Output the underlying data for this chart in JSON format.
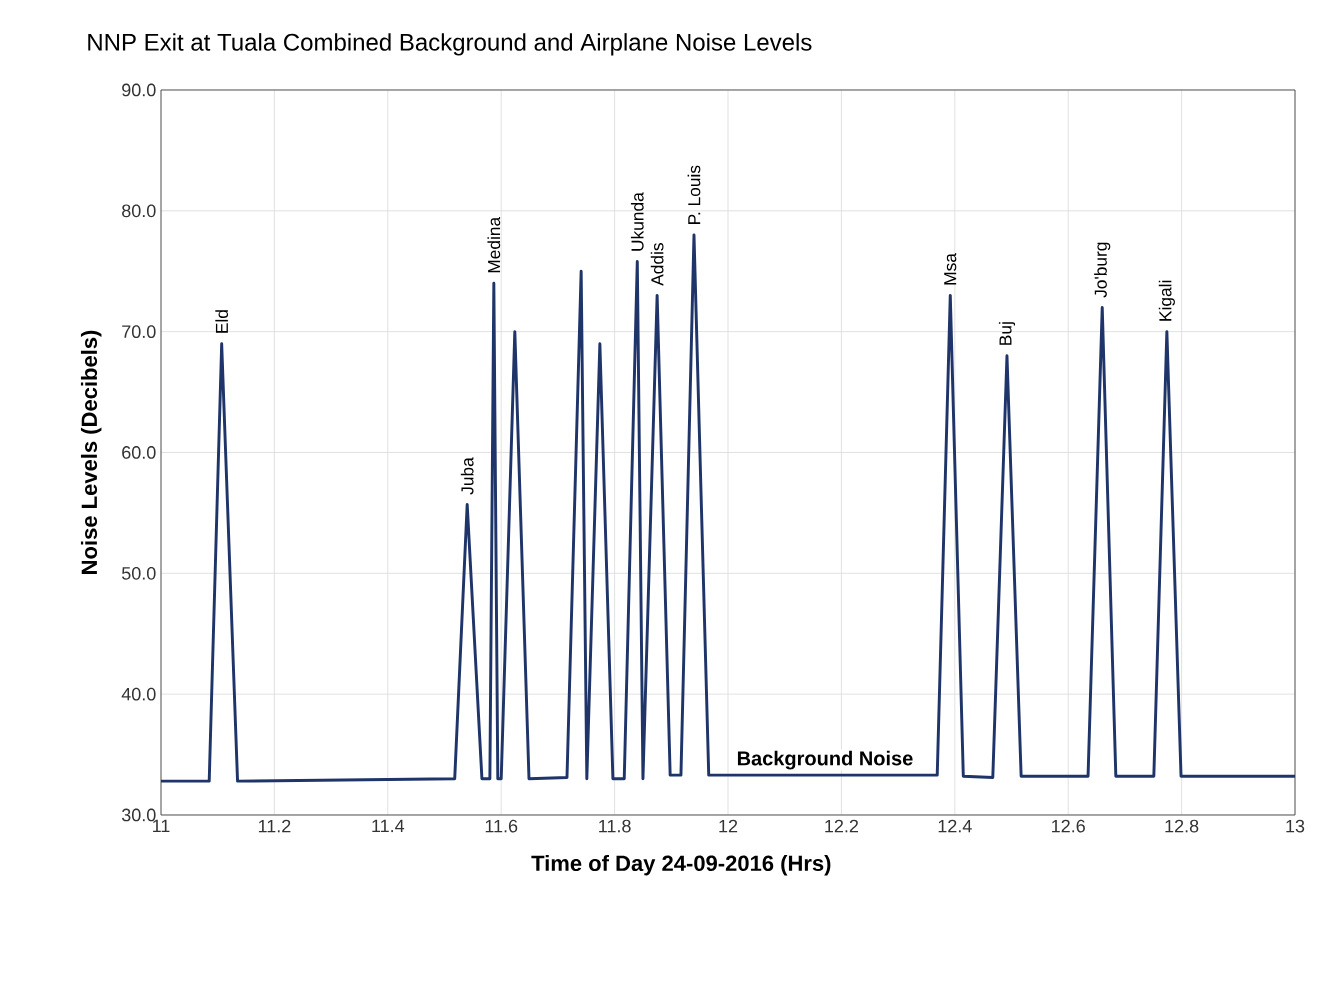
{
  "chart_data": {
    "type": "line",
    "title": "NNP Exit at Tuala Combined Background and Airplane Noise Levels",
    "xlabel": "Time of Day 24-09-2016 (Hrs)",
    "ylabel": "Noise Levels (Decibels)",
    "color": "#1f3468",
    "x": [
      11,
      11.085,
      11.107,
      11.135,
      11.518,
      11.54,
      11.566,
      11.58,
      11.587,
      11.594,
      11.6,
      11.624,
      11.649,
      11.716,
      11.741,
      11.751,
      11.774,
      11.797,
      11.817,
      11.84,
      11.85,
      11.875,
      11.898,
      11.917,
      11.94,
      11.966,
      12.369,
      12.392,
      12.415,
      12.467,
      12.492,
      12.517,
      12.635,
      12.66,
      12.684,
      12.751,
      12.774,
      12.799,
      13
    ],
    "values": [
      32.8,
      32.8,
      69.0,
      32.8,
      33.0,
      55.7,
      33.0,
      33.0,
      74.0,
      33.0,
      33.0,
      70.0,
      33.0,
      33.1,
      75.0,
      33.0,
      69.0,
      33.0,
      33.0,
      75.8,
      33.0,
      73.0,
      33.3,
      33.3,
      78.0,
      33.3,
      33.3,
      73.0,
      33.2,
      33.1,
      68.0,
      33.2,
      33.2,
      72.0,
      33.2,
      33.2,
      70.0,
      33.2,
      33.2
    ],
    "xlim": [
      11,
      13
    ],
    "ylim": [
      30,
      90
    ],
    "xticks": [
      11,
      11.2,
      11.4,
      11.6,
      11.8,
      12,
      12.2,
      12.4,
      12.6,
      12.8,
      13
    ],
    "yticks": [
      {
        "value": 30,
        "label": "30.0"
      },
      {
        "value": 40,
        "label": "40.0"
      },
      {
        "value": 50,
        "label": "50.0"
      },
      {
        "value": 60,
        "label": "60.0"
      },
      {
        "value": 70,
        "label": "70.0"
      },
      {
        "value": 80,
        "label": "80.0"
      },
      {
        "value": 90,
        "label": "90.0"
      }
    ],
    "grid": true,
    "annotations": [
      {
        "text": "Eld",
        "x": 11.107,
        "y": 69.0
      },
      {
        "text": "Juba",
        "x": 11.54,
        "y": 55.7
      },
      {
        "text": "Medina",
        "x": 11.587,
        "y": 74.0
      },
      {
        "text": "Ukunda",
        "x": 11.84,
        "y": 75.8
      },
      {
        "text": "Addis",
        "x": 11.875,
        "y": 73.0
      },
      {
        "text": "P. Louis",
        "x": 11.94,
        "y": 78.0
      },
      {
        "text": "Msa",
        "x": 12.392,
        "y": 73.0
      },
      {
        "text": "Buj",
        "x": 12.492,
        "y": 68.0
      },
      {
        "text": "Jo'burg",
        "x": 12.66,
        "y": 72.0
      },
      {
        "text": "Kigali",
        "x": 12.774,
        "y": 70.0
      },
      {
        "text": "Background Noise",
        "x": 12.171,
        "y": 33.3
      }
    ]
  }
}
